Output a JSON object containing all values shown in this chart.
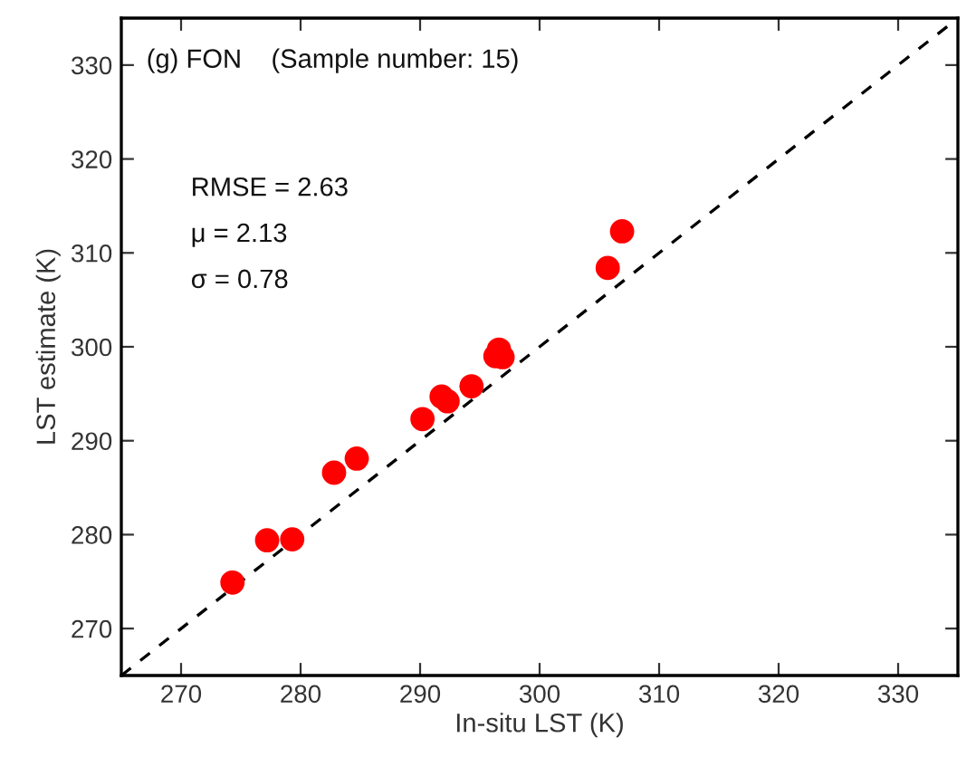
{
  "chart_data": {
    "type": "scatter",
    "xlabel": "In-situ LST (K)",
    "ylabel": "LST estimate (K)",
    "xlim": [
      265,
      335
    ],
    "ylim": [
      265,
      335
    ],
    "xticks": [
      270,
      280,
      290,
      300,
      310,
      320,
      330
    ],
    "yticks": [
      270,
      280,
      290,
      300,
      310,
      320,
      330
    ],
    "grid": false,
    "legend": false,
    "marker": "circle",
    "annotations": [
      "(g) FON    (Sample number: 15)",
      "RMSE = 2.63",
      "μ = 2.13",
      "σ = 0.78"
    ],
    "series": [
      {
        "color": "#ff0000",
        "x": [
          274.3,
          277.2,
          279.3,
          282.8,
          284.7,
          290.2,
          291.8,
          292.3,
          294.3,
          296.3,
          296.6,
          296.9,
          305.7,
          306.9
        ],
        "values": [
          274.9,
          279.4,
          279.5,
          286.6,
          288.1,
          292.3,
          294.7,
          294.2,
          295.8,
          299.0,
          299.7,
          298.9,
          308.4,
          312.3
        ]
      },
      {
        "type": "line",
        "marker": "none",
        "color": "#000000",
        "line_style": "dashed",
        "x": [
          265,
          335
        ],
        "values": [
          265,
          335
        ]
      }
    ]
  }
}
